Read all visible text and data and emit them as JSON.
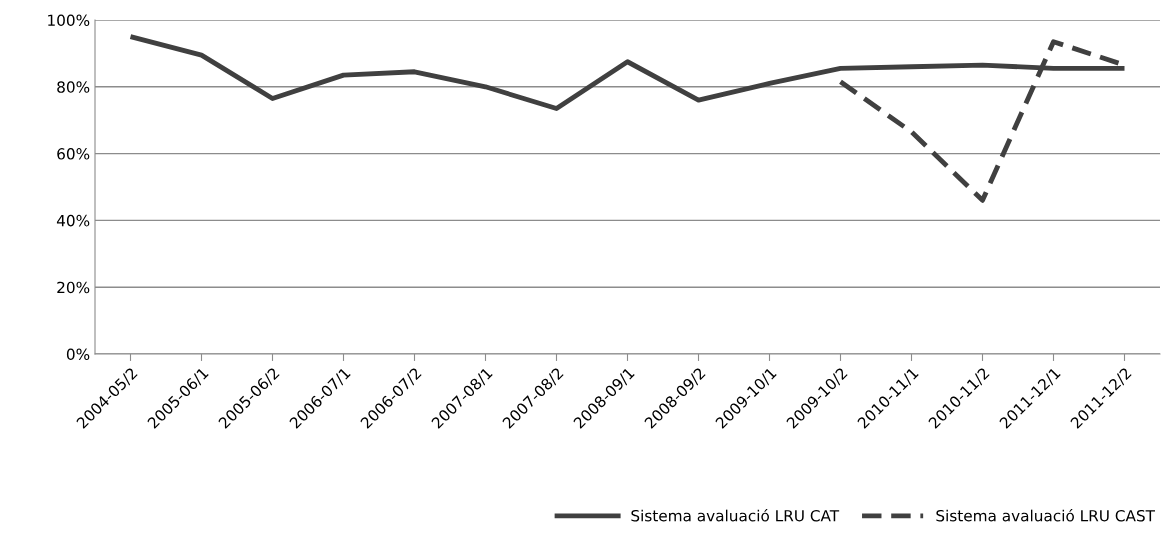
{
  "chart_data": {
    "type": "line",
    "categories": [
      "2004-05/2",
      "2005-06/1",
      "2005-06/2",
      "2006-07/1",
      "2006-07/2",
      "2007-08/1",
      "2007-08/2",
      "2008-09/1",
      "2008-09/2",
      "2009-10/1",
      "2009-10/2",
      "2010-11/1",
      "2010-11/2",
      "2011-12/1",
      "2011-12/2"
    ],
    "series": [
      {
        "name": "Sistema avaluació LRU CAT",
        "color": "#404040",
        "line_style": "solid",
        "values": [
          95,
          89.5,
          76.5,
          83.5,
          84.5,
          80,
          73.5,
          87.5,
          76,
          81,
          85.5,
          86,
          86.5,
          85.5,
          85.5
        ]
      },
      {
        "name": "Sistema avaluació LRU CAST",
        "color": "#404040",
        "line_style": "dashed",
        "values": [
          null,
          null,
          null,
          null,
          null,
          null,
          null,
          null,
          null,
          null,
          81.5,
          66.5,
          46,
          93.5,
          86.5
        ]
      }
    ],
    "ylim": [
      0,
      100
    ],
    "yticks": [
      {
        "value": 0,
        "label": "0%"
      },
      {
        "value": 20,
        "label": "20%"
      },
      {
        "value": 40,
        "label": "40%"
      },
      {
        "value": 60,
        "label": "60%"
      },
      {
        "value": 80,
        "label": "80%"
      },
      {
        "value": 100,
        "label": "100%"
      }
    ],
    "grid": "y",
    "legend": "bottom right",
    "marker": "none"
  }
}
